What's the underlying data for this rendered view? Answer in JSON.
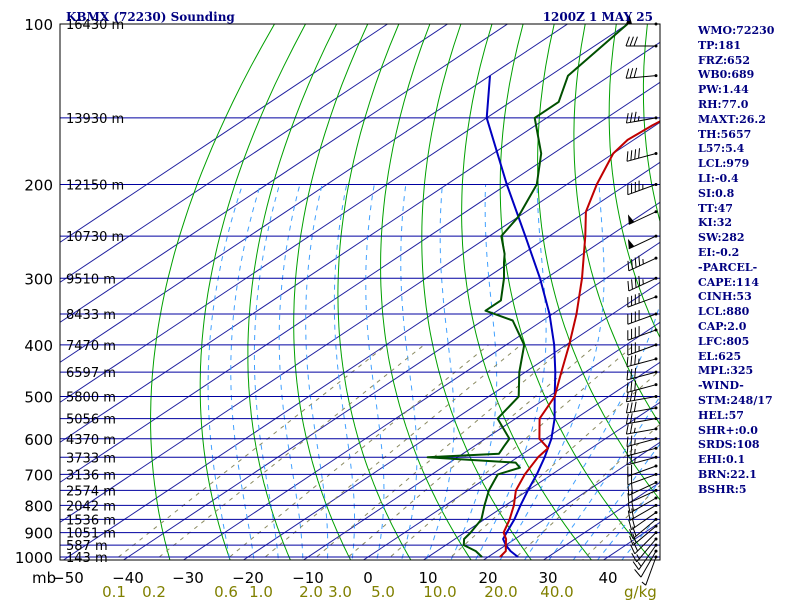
{
  "chart_data": {
    "type": "skew-t",
    "title_left": "KBMX (72230) Sounding",
    "title_right": "1200Z  1 MAY 25",
    "pressure_unit": "mb",
    "pressure_levels": [
      {
        "p": 100,
        "label": "100"
      },
      {
        "p": 200,
        "label": "200"
      },
      {
        "p": 300,
        "label": "300"
      },
      {
        "p": 400,
        "label": "400"
      },
      {
        "p": 500,
        "label": "500"
      },
      {
        "p": 600,
        "label": "600"
      },
      {
        "p": 700,
        "label": "700"
      },
      {
        "p": 800,
        "label": "800"
      },
      {
        "p": 900,
        "label": "900"
      },
      {
        "p": 1000,
        "label": "1000"
      }
    ],
    "height_levels": [
      {
        "p": 100,
        "label": "16430 m"
      },
      {
        "p": 150,
        "label": "13930 m"
      },
      {
        "p": 200,
        "label": "12150 m"
      },
      {
        "p": 250,
        "label": "10730 m"
      },
      {
        "p": 300,
        "label": "9510 m"
      },
      {
        "p": 350,
        "label": "8433 m"
      },
      {
        "p": 400,
        "label": "7470 m"
      },
      {
        "p": 450,
        "label": "6597 m"
      },
      {
        "p": 500,
        "label": "5800 m"
      },
      {
        "p": 550,
        "label": "5056 m"
      },
      {
        "p": 600,
        "label": "4370 m"
      },
      {
        "p": 650,
        "label": "3733 m"
      },
      {
        "p": 700,
        "label": "3136 m"
      },
      {
        "p": 750,
        "label": "2574 m"
      },
      {
        "p": 800,
        "label": "2042 m"
      },
      {
        "p": 850,
        "label": "1536 m"
      },
      {
        "p": 900,
        "label": "1051 m"
      },
      {
        "p": 950,
        "label": "587 m"
      },
      {
        "p": 1000,
        "label": "143 m"
      }
    ],
    "temperature_ticks": [
      {
        "t": -50,
        "label": "−50"
      },
      {
        "t": -40,
        "label": "−40"
      },
      {
        "t": -30,
        "label": "−30"
      },
      {
        "t": -20,
        "label": "−20"
      },
      {
        "t": -10,
        "label": "−10"
      },
      {
        "t": 0,
        "label": "0"
      },
      {
        "t": 10,
        "label": "10"
      },
      {
        "t": 20,
        "label": "20"
      },
      {
        "t": 30,
        "label": "30"
      },
      {
        "t": 40,
        "label": "40"
      }
    ],
    "mixing_ratio_labels": [
      "0.1",
      "0.2",
      "0.6",
      "1.0",
      "2.0",
      "3.0",
      "5.0",
      "10.0",
      "20.0",
      "40.0"
    ],
    "mixing_ratio_unit": "g/kg",
    "mixing_ratio_values": [
      0.1,
      0.2,
      0.6,
      1.0,
      2.0,
      3.0,
      5.0,
      10.0,
      20.0,
      40.0
    ],
    "temperature_profile": [
      {
        "p": 1000,
        "t": 22.0
      },
      {
        "p": 975,
        "t": 21.5
      },
      {
        "p": 950,
        "t": 20.0
      },
      {
        "p": 925,
        "t": 18.5
      },
      {
        "p": 900,
        "t": 16.5
      },
      {
        "p": 850,
        "t": 14.2
      },
      {
        "p": 800,
        "t": 11.4
      },
      {
        "p": 750,
        "t": 8.0
      },
      {
        "p": 700,
        "t": 5.5
      },
      {
        "p": 650,
        "t": 3.4
      },
      {
        "p": 625,
        "t": 2.8
      },
      {
        "p": 600,
        "t": -1.0
      },
      {
        "p": 550,
        "t": -6.0
      },
      {
        "p": 500,
        "t": -9.0
      },
      {
        "p": 450,
        "t": -14.0
      },
      {
        "p": 400,
        "t": -19.5
      },
      {
        "p": 350,
        "t": -26.0
      },
      {
        "p": 300,
        "t": -34.0
      },
      {
        "p": 250,
        "t": -44.0
      },
      {
        "p": 225,
        "t": -50.0
      },
      {
        "p": 200,
        "t": -55.0
      },
      {
        "p": 175,
        "t": -60.0
      },
      {
        "p": 165,
        "t": -61.0
      },
      {
        "p": 155,
        "t": -60.5
      },
      {
        "p": 145,
        "t": -59.5
      },
      {
        "p": 135,
        "t": -61.0
      },
      {
        "p": 125,
        "t": -62.0
      },
      {
        "p": 112,
        "t": -64.0
      },
      {
        "p": 100,
        "t": -65.0
      }
    ],
    "dewpoint_profile": [
      {
        "p": 1000,
        "t": 19.0
      },
      {
        "p": 975,
        "t": 16.5
      },
      {
        "p": 950,
        "t": 13.0
      },
      {
        "p": 925,
        "t": 11.5
      },
      {
        "p": 900,
        "t": 11.0
      },
      {
        "p": 850,
        "t": 9.5
      },
      {
        "p": 800,
        "t": 6.5
      },
      {
        "p": 750,
        "t": 3.5
      },
      {
        "p": 700,
        "t": 1.0
      },
      {
        "p": 680,
        "t": 3.0
      },
      {
        "p": 665,
        "t": 1.0
      },
      {
        "p": 650,
        "t": -15.0
      },
      {
        "p": 640,
        "t": -4.0
      },
      {
        "p": 620,
        "t": -5.0
      },
      {
        "p": 600,
        "t": -6.0
      },
      {
        "p": 550,
        "t": -13.0
      },
      {
        "p": 500,
        "t": -15.0
      },
      {
        "p": 450,
        "t": -21.0
      },
      {
        "p": 400,
        "t": -27.0
      },
      {
        "p": 360,
        "t": -35.0
      },
      {
        "p": 345,
        "t": -42.0
      },
      {
        "p": 330,
        "t": -42.0
      },
      {
        "p": 300,
        "t": -47.0
      },
      {
        "p": 280,
        "t": -51.0
      },
      {
        "p": 270,
        "t": -53.0
      },
      {
        "p": 250,
        "t": -58.0
      },
      {
        "p": 230,
        "t": -60.0
      },
      {
        "p": 200,
        "t": -65.0
      },
      {
        "p": 175,
        "t": -72.0
      },
      {
        "p": 150,
        "t": -82.0
      },
      {
        "p": 140,
        "t": -82.0
      },
      {
        "p": 125,
        "t": -87.0
      },
      {
        "p": 100,
        "t": -90.0
      }
    ],
    "parcel_profile": [
      {
        "p": 1000,
        "t": 25.0
      },
      {
        "p": 975,
        "t": 22.3
      },
      {
        "p": 950,
        "t": 20.0
      },
      {
        "p": 925,
        "t": 18.0
      },
      {
        "p": 900,
        "t": 17.0
      },
      {
        "p": 850,
        "t": 15.0
      },
      {
        "p": 800,
        "t": 12.5
      },
      {
        "p": 750,
        "t": 10.0
      },
      {
        "p": 700,
        "t": 7.5
      },
      {
        "p": 650,
        "t": 4.5
      },
      {
        "p": 600,
        "t": 1.0
      },
      {
        "p": 550,
        "t": -3.5
      },
      {
        "p": 500,
        "t": -9.0
      },
      {
        "p": 450,
        "t": -15.0
      },
      {
        "p": 400,
        "t": -22.0
      },
      {
        "p": 350,
        "t": -30.5
      },
      {
        "p": 300,
        "t": -41.0
      },
      {
        "p": 250,
        "t": -54.0
      },
      {
        "p": 200,
        "t": -70.0
      },
      {
        "p": 150,
        "t": -90.0
      },
      {
        "p": 125,
        "t": -100.0
      }
    ],
    "wind_profile": [
      {
        "p": 1000,
        "dir": 200,
        "kt": 5
      },
      {
        "p": 975,
        "dir": 210,
        "kt": 10
      },
      {
        "p": 950,
        "dir": 215,
        "kt": 15
      },
      {
        "p": 925,
        "dir": 220,
        "kt": 15
      },
      {
        "p": 900,
        "dir": 225,
        "kt": 20
      },
      {
        "p": 875,
        "dir": 230,
        "kt": 20
      },
      {
        "p": 850,
        "dir": 230,
        "kt": 20
      },
      {
        "p": 825,
        "dir": 235,
        "kt": 20
      },
      {
        "p": 800,
        "dir": 240,
        "kt": 20
      },
      {
        "p": 775,
        "dir": 240,
        "kt": 20
      },
      {
        "p": 750,
        "dir": 245,
        "kt": 20
      },
      {
        "p": 725,
        "dir": 245,
        "kt": 20
      },
      {
        "p": 700,
        "dir": 250,
        "kt": 20
      },
      {
        "p": 675,
        "dir": 250,
        "kt": 20
      },
      {
        "p": 650,
        "dir": 255,
        "kt": 25
      },
      {
        "p": 625,
        "dir": 255,
        "kt": 25
      },
      {
        "p": 600,
        "dir": 255,
        "kt": 25
      },
      {
        "p": 575,
        "dir": 260,
        "kt": 25
      },
      {
        "p": 550,
        "dir": 260,
        "kt": 25
      },
      {
        "p": 525,
        "dir": 260,
        "kt": 30
      },
      {
        "p": 500,
        "dir": 260,
        "kt": 30
      },
      {
        "p": 475,
        "dir": 255,
        "kt": 30
      },
      {
        "p": 450,
        "dir": 255,
        "kt": 30
      },
      {
        "p": 425,
        "dir": 255,
        "kt": 35
      },
      {
        "p": 400,
        "dir": 250,
        "kt": 35
      },
      {
        "p": 375,
        "dir": 250,
        "kt": 40
      },
      {
        "p": 350,
        "dir": 250,
        "kt": 40
      },
      {
        "p": 325,
        "dir": 250,
        "kt": 40
      },
      {
        "p": 300,
        "dir": 245,
        "kt": 45
      },
      {
        "p": 275,
        "dir": 245,
        "kt": 45
      },
      {
        "p": 250,
        "dir": 245,
        "kt": 50
      },
      {
        "p": 225,
        "dir": 245,
        "kt": 50
      },
      {
        "p": 200,
        "dir": 250,
        "kt": 45
      },
      {
        "p": 175,
        "dir": 255,
        "kt": 40
      },
      {
        "p": 150,
        "dir": 260,
        "kt": 35
      },
      {
        "p": 125,
        "dir": 265,
        "kt": 30
      },
      {
        "p": 110,
        "dir": 270,
        "kt": 30
      },
      {
        "p": 100,
        "dir": 270,
        "kt": 50
      }
    ],
    "colors": {
      "isobar": "#0000a0",
      "isotherm": "#2020a0",
      "dry_adiabat": "#00a000",
      "moist_adiabat": "#40a0ff",
      "mixing_ratio": "#8a8a60",
      "temperature": "#c00000",
      "dewpoint": "#005000",
      "parcel": "#0000c0",
      "header": "#000080",
      "mixing_ratio_label": "#808000",
      "wind_barb": "#000000"
    },
    "indices": [
      "WMO:72230",
      "TP:181",
      "FRZ:652",
      "WB0:689",
      "PW:1.44",
      "RH:77.0",
      "MAXT:26.2",
      "TH:5657",
      "L57:5.4",
      "LCL:979",
      "LI:-0.4",
      "SI:0.8",
      "TT:47",
      "KI:32",
      "SW:282",
      "EI:-0.2",
      "-PARCEL-",
      "CAPE:114",
      "CINH:53",
      "LCL:880",
      "CAP:2.0",
      "LFC:805",
      "EL:625",
      "MPL:325",
      "-WIND-",
      "STM:248/17",
      "HEL:57",
      "SHR+:0.0",
      "SRDS:108",
      "EHI:0.1",
      "BRN:22.1",
      "BSHR:5"
    ]
  }
}
